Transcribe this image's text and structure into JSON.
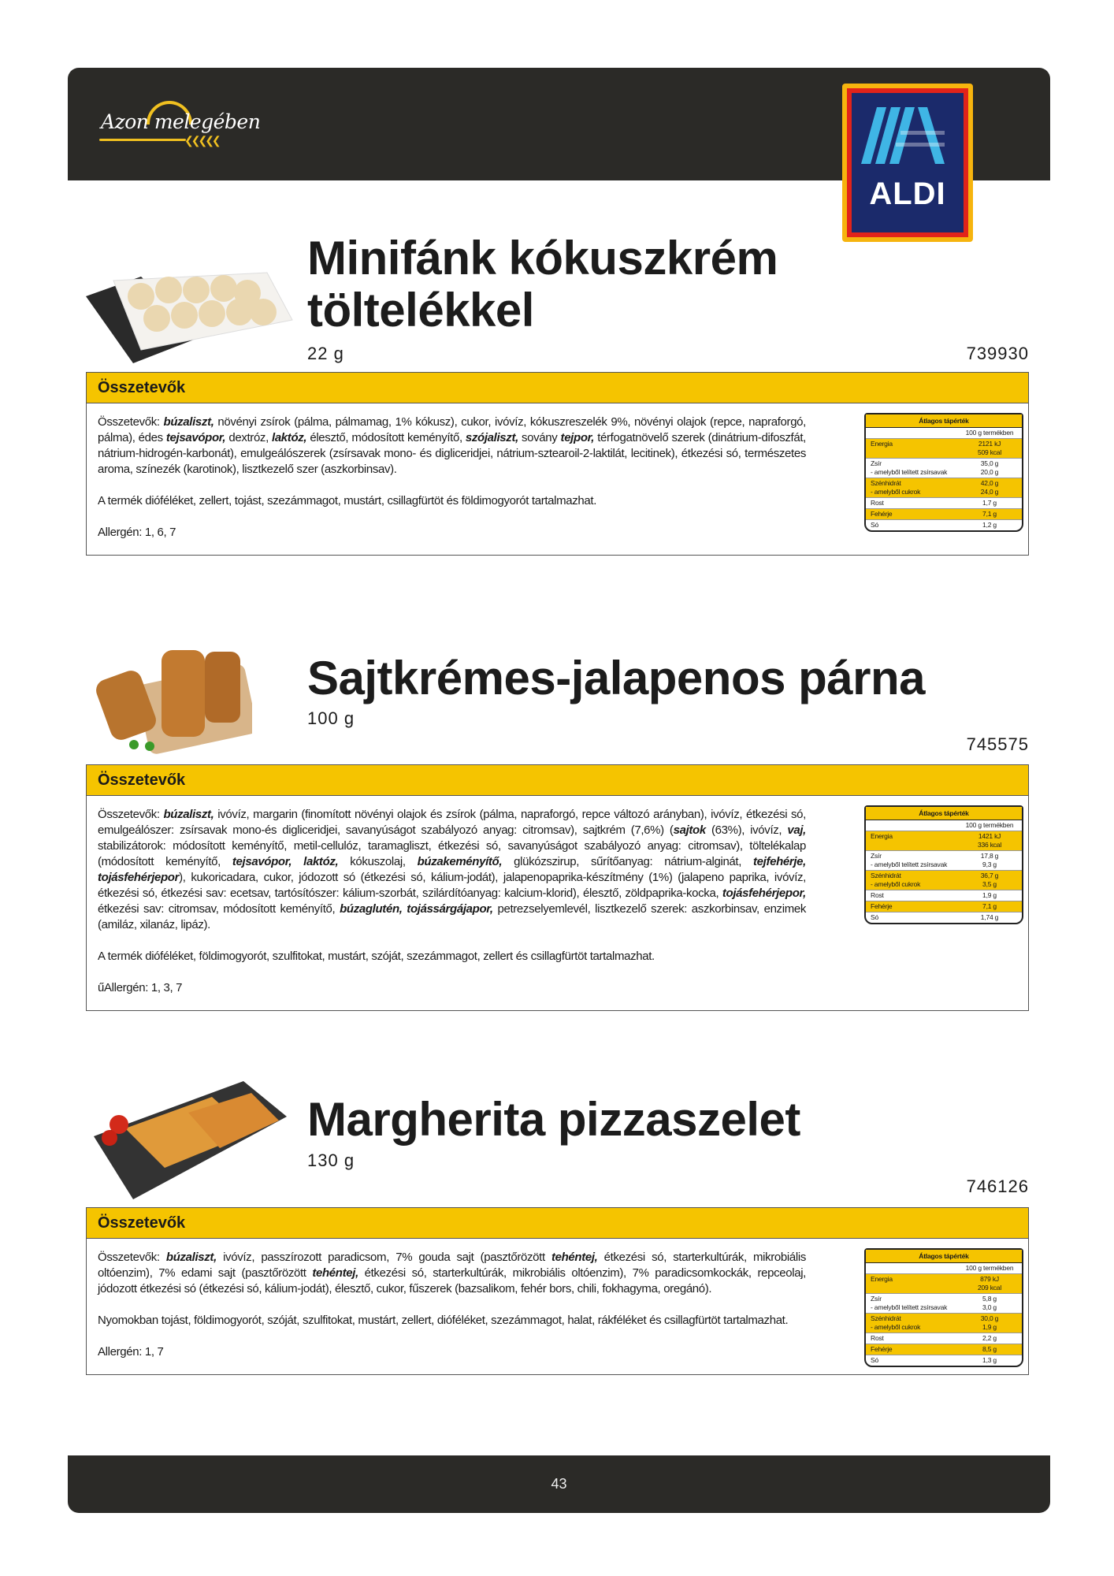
{
  "header": {
    "brand_logo_text": "Azon melegében",
    "retailer_logo_text": "ALDI"
  },
  "colors": {
    "accent_yellow": "#f5c400",
    "header_dark": "#2b2a27",
    "aldi_blue": "#1b2a6b",
    "aldi_red": "#e2231a",
    "aldi_orange": "#f6b40e"
  },
  "products": [
    {
      "title_lines": [
        "Minifánk kókuszkrém",
        "töltelékkel"
      ],
      "weight": "22 g",
      "code": "739930",
      "section_label": "Összetevők",
      "ingredients": [
        {
          "t": "Összetevők: "
        },
        {
          "t": "búzaliszt,",
          "b": true
        },
        {
          "t": " növényi zsírok (pálma, pálmamag, 1% kókusz), cukor, ivóvíz, kókuszreszelék 9%, növényi olajok (repce, napraforgó, pálma), édes "
        },
        {
          "t": "tejsavópor,",
          "b": true
        },
        {
          "t": " dextróz, "
        },
        {
          "t": "laktóz,",
          "b": true
        },
        {
          "t": " élesztő, módosított keményítő, "
        },
        {
          "t": "szójaliszt,",
          "b": true
        },
        {
          "t": " sovány "
        },
        {
          "t": "tejpor,",
          "b": true
        },
        {
          "t": " térfogatnövelő szerek (dinátrium-difoszfát, nátrium-hidrogén-karbonát), emulgeálószerek (zsírsavak mono- és digliceridjei, nátrium-sztearoil-2-laktilát, lecitinek), étkezési só, természetes aroma, színezék (karotinok), lisztkezelő szer (aszkorbinsav)."
        }
      ],
      "trace_note": "A termék dióféléket, zellert, tojást, szezámmagot, mustárt, csillagfürtöt és földimogyorót tartalmazhat.",
      "allergen": "Allergén: 1, 6, 7",
      "nutrition": {
        "title": "Átlagos tápérték",
        "column": "100 g termékben",
        "rows": [
          {
            "label": "Energia",
            "value": "2121 kJ",
            "sub_value": "509 kcal",
            "highlight": true
          },
          {
            "label": "Zsír",
            "value": "35,0 g",
            "sub_label": "- amelyből telített zsírsavak",
            "sub_value": "20,0 g"
          },
          {
            "label": "Szénhidrát",
            "value": "42,0 g",
            "sub_label": "- amelyből cukrok",
            "sub_value": "24,0 g",
            "highlight": true
          },
          {
            "label": "Rost",
            "value": "1,7 g"
          },
          {
            "label": "Fehérje",
            "value": "7,1 g",
            "highlight": true
          },
          {
            "label": "Só",
            "value": "1,2 g"
          }
        ]
      }
    },
    {
      "title_lines": [
        "Sajtkrémes-jalapenos párna"
      ],
      "weight": "100 g",
      "code": "745575",
      "section_label": "Összetevők",
      "ingredients": [
        {
          "t": "Összetevők: "
        },
        {
          "t": "búzaliszt,",
          "b": true
        },
        {
          "t": " ivóvíz, margarin (finomított növényi olajok és zsírok (pálma, napraforgó, repce változó arányban), ivóvíz, étkezési só, emulgeálószer: zsírsavak mono-és digliceridjei, savanyúságot szabályozó anyag: citromsav), sajtkrém (7,6%) ("
        },
        {
          "t": "sajtok",
          "b": true
        },
        {
          "t": " (63%), ivóvíz, "
        },
        {
          "t": "vaj,",
          "b": true
        },
        {
          "t": " stabilizátorok: módosított keményítő, metil-cellulóz, taramagliszt, étkezési só, savanyúságot szabályozó anyag: citromsav), töltelékalap (módosított keményítő, "
        },
        {
          "t": "tejsavópor, laktóz,",
          "b": true
        },
        {
          "t": " kókuszolaj, "
        },
        {
          "t": "búzakeményítő,",
          "b": true
        },
        {
          "t": " glükózszirup, sűrítőanyag: nátrium-alginát, "
        },
        {
          "t": "tejfehérje, tojásfehérjepor",
          "b": true
        },
        {
          "t": "), kukoricadara, cukor, jódozott só (étkezési só, kálium-jodát), jalapenopaprika-készítmény (1%) (jalapeno paprika, ivóvíz, étkezési só, étkezési sav: ecetsav, tartósítószer: kálium-szorbát, szilárdítóanyag: kalcium-klorid), élesztő, zöldpaprika-kocka, "
        },
        {
          "t": "tojásfehérjepor,",
          "b": true
        },
        {
          "t": " étkezési sav: citromsav, módosított keményítő, "
        },
        {
          "t": "búzaglutén, tojássárgájapor,",
          "b": true
        },
        {
          "t": " petrezselyemlevél, lisztkezelő szerek: aszkorbinsav, enzimek (amiláz, xilanáz, lipáz)."
        }
      ],
      "trace_note": "A termék dióféléket, földimogyorót, szulfitokat, mustárt, szóját, szezámmagot, zellert és csillagfürtöt tartalmazhat.",
      "allergen": "űAllergén: 1, 3, 7",
      "nutrition": {
        "title": "Átlagos tápérték",
        "column": "100 g termékben",
        "rows": [
          {
            "label": "Energia",
            "value": "1421 kJ",
            "sub_value": "336 kcal",
            "highlight": true
          },
          {
            "label": "Zsír",
            "value": "17,8 g",
            "sub_label": "- amelyből telített zsírsavak",
            "sub_value": "9,3 g"
          },
          {
            "label": "Szénhidrát",
            "value": "36,7 g",
            "sub_label": "- amelyből cukrok",
            "sub_value": "3,5 g",
            "highlight": true
          },
          {
            "label": "Rost",
            "value": "1,9 g"
          },
          {
            "label": "Fehérje",
            "value": "7,1 g",
            "highlight": true
          },
          {
            "label": "Só",
            "value": "1,74 g"
          }
        ]
      }
    },
    {
      "title_lines": [
        "Margherita pizzaszelet"
      ],
      "weight": "130 g",
      "code": "746126",
      "section_label": "Összetevők",
      "ingredients": [
        {
          "t": "Összetevők: "
        },
        {
          "t": "búzaliszt,",
          "b": true
        },
        {
          "t": " ivóvíz, passzírozott paradicsom, 7% gouda sajt (pasztőrözött "
        },
        {
          "t": "tehéntej,",
          "b": true
        },
        {
          "t": " étkezési só, starterkultúrák, mikrobiális oltóenzim), 7% edami sajt (pasztőrözött "
        },
        {
          "t": "tehéntej,",
          "b": true
        },
        {
          "t": " étkezési só, starterkultúrák, mikrobiális oltóenzim), 7% paradicsomkockák, repceolaj, jódozott étkezési só (étkezési só, kálium-jodát), élesztő, cukor, fűszerek (bazsalikom, fehér bors, chili, fokhagyma, oregánó)."
        }
      ],
      "trace_note": "Nyomokban tojást, földimogyorót, szóját, szulfitokat, mustárt, zellert, dióféléket, szezámmagot, halat, rákféléket és csillagfürtöt tartalmazhat.",
      "allergen": "Allergén: 1, 7",
      "nutrition": {
        "title": "Átlagos tápérték",
        "column": "100 g termékben",
        "rows": [
          {
            "label": "Energia",
            "value": "879 kJ",
            "sub_value": "209 kcal",
            "highlight": true
          },
          {
            "label": "Zsír",
            "value": "5,8 g",
            "sub_label": "- amelyből telített zsírsavak",
            "sub_value": "3,0 g"
          },
          {
            "label": "Szénhidrát",
            "value": "30,0 g",
            "sub_label": "- amelyből cukrok",
            "sub_value": "1,9 g",
            "highlight": true
          },
          {
            "label": "Rost",
            "value": "2,2 g"
          },
          {
            "label": "Fehérje",
            "value": "8,5 g",
            "highlight": true
          },
          {
            "label": "Só",
            "value": "1,3 g"
          }
        ]
      }
    }
  ],
  "footer": {
    "page_number": "43"
  }
}
